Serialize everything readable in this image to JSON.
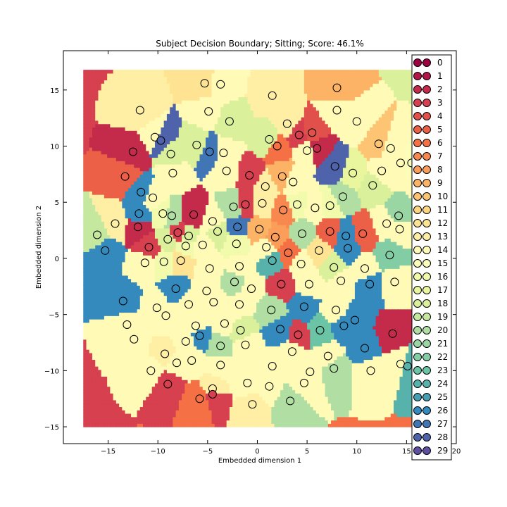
{
  "chart_data": {
    "type": "scatter",
    "title": "Subject Decision Boundary; Sitting; Score: 46.1%",
    "xlabel": "Embedded dimension 1",
    "ylabel": "Embedded dimension 2",
    "xlim": [
      -19.5,
      20
    ],
    "ylim": [
      -16.5,
      18.5
    ],
    "xticks": [
      -15,
      -10,
      -5,
      0,
      5,
      10,
      15,
      20
    ],
    "xtick_labels": [
      "−15",
      "−10",
      "−5",
      "0",
      "5",
      "10",
      "15",
      "20"
    ],
    "yticks": [
      -15,
      -10,
      -5,
      0,
      5,
      10,
      15
    ],
    "ytick_labels": [
      "−15",
      "−10",
      "−5",
      "0",
      "5",
      "10",
      "15"
    ],
    "grid": false,
    "legend_position": "right (overlapping plot edge)",
    "colormap": "Spectral",
    "legend_entries": [
      "0",
      "1",
      "2",
      "3",
      "4",
      "5",
      "6",
      "7",
      "8",
      "9",
      "10",
      "11",
      "12",
      "13",
      "14",
      "15",
      "16",
      "17",
      "18",
      "19",
      "20",
      "21",
      "22",
      "23",
      "24",
      "25",
      "26",
      "27",
      "28",
      "29"
    ],
    "region_extent": {
      "x": [
        -17.5,
        17.8
      ],
      "y": [
        -15,
        16.8
      ]
    },
    "points": [
      {
        "x": -5.3,
        "y": 15.6,
        "c": 12
      },
      {
        "x": -3.7,
        "y": 15.5,
        "c": 14
      },
      {
        "x": -11.8,
        "y": 13.2,
        "c": 13
      },
      {
        "x": -4.9,
        "y": 13.1,
        "c": 14
      },
      {
        "x": -2.8,
        "y": 12.2,
        "c": 18
      },
      {
        "x": 1.5,
        "y": 14.5,
        "c": 13
      },
      {
        "x": 3.0,
        "y": 12.0,
        "c": 13
      },
      {
        "x": 8.0,
        "y": 15.2,
        "c": 9
      },
      {
        "x": 8.0,
        "y": 13.2,
        "c": 14
      },
      {
        "x": 10.0,
        "y": 12.2,
        "c": 14
      },
      {
        "x": -12.5,
        "y": 9.5,
        "c": 2
      },
      {
        "x": -10.3,
        "y": 10.8,
        "c": 14
      },
      {
        "x": -9.7,
        "y": 10.5,
        "c": 28
      },
      {
        "x": -8.7,
        "y": 9.3,
        "c": 18
      },
      {
        "x": -6.1,
        "y": 10.1,
        "c": 18
      },
      {
        "x": -4.8,
        "y": 9.5,
        "c": 27
      },
      {
        "x": -3.4,
        "y": 9.4,
        "c": 14
      },
      {
        "x": 1.2,
        "y": 10.6,
        "c": 18
      },
      {
        "x": 2.0,
        "y": 10.0,
        "c": 6
      },
      {
        "x": 4.2,
        "y": 11.0,
        "c": 3
      },
      {
        "x": 5.5,
        "y": 11.2,
        "c": 4
      },
      {
        "x": 5.0,
        "y": 9.6,
        "c": 14
      },
      {
        "x": 6.0,
        "y": 9.8,
        "c": 2
      },
      {
        "x": 12.2,
        "y": 10.2,
        "c": 10
      },
      {
        "x": 13.4,
        "y": 9.8,
        "c": 14
      },
      {
        "x": 14.4,
        "y": 8.5,
        "c": 14
      },
      {
        "x": 15.5,
        "y": 8.5,
        "c": 15
      },
      {
        "x": 16.5,
        "y": 7.2,
        "c": 14
      },
      {
        "x": -13.3,
        "y": 7.3,
        "c": 5
      },
      {
        "x": -11.7,
        "y": 5.9,
        "c": 26
      },
      {
        "x": -8.5,
        "y": 7.6,
        "c": 14
      },
      {
        "x": -3.1,
        "y": 7.8,
        "c": 14
      },
      {
        "x": -0.8,
        "y": 7.4,
        "c": 3
      },
      {
        "x": 0.8,
        "y": 6.4,
        "c": 13
      },
      {
        "x": 2.5,
        "y": 7.3,
        "c": 9
      },
      {
        "x": 3.6,
        "y": 6.8,
        "c": 14
      },
      {
        "x": 7.8,
        "y": 8.2,
        "c": 28
      },
      {
        "x": 9.6,
        "y": 7.6,
        "c": 17
      },
      {
        "x": 11.6,
        "y": 6.5,
        "c": 18
      },
      {
        "x": 12.5,
        "y": 7.8,
        "c": 14
      },
      {
        "x": -14.3,
        "y": 3.1,
        "c": 13
      },
      {
        "x": -11.9,
        "y": 4.0,
        "c": 26
      },
      {
        "x": -10.5,
        "y": 5.4,
        "c": 14
      },
      {
        "x": -9.5,
        "y": 4.0,
        "c": 16
      },
      {
        "x": -8.6,
        "y": 3.8,
        "c": 20
      },
      {
        "x": -6.4,
        "y": 3.9,
        "c": 2
      },
      {
        "x": -4.5,
        "y": 3.3,
        "c": 14
      },
      {
        "x": -2.4,
        "y": 4.6,
        "c": 20
      },
      {
        "x": -1.2,
        "y": 4.8,
        "c": 3
      },
      {
        "x": 0.5,
        "y": 4.9,
        "c": 13
      },
      {
        "x": 2.6,
        "y": 4.3,
        "c": 7
      },
      {
        "x": 4.0,
        "y": 4.8,
        "c": 16
      },
      {
        "x": 5.8,
        "y": 4.5,
        "c": 14
      },
      {
        "x": 7.3,
        "y": 4.7,
        "c": 16
      },
      {
        "x": 8.6,
        "y": 5.5,
        "c": 20
      },
      {
        "x": 13.0,
        "y": 3.1,
        "c": 14
      },
      {
        "x": 14.2,
        "y": 3.8,
        "c": 21
      },
      {
        "x": -16.1,
        "y": 2.1,
        "c": 19
      },
      {
        "x": -12.0,
        "y": 2.8,
        "c": 2
      },
      {
        "x": -8.0,
        "y": 2.3,
        "c": 3
      },
      {
        "x": -6.9,
        "y": 2.0,
        "c": 18
      },
      {
        "x": -4.0,
        "y": 2.4,
        "c": 18
      },
      {
        "x": -2.0,
        "y": 2.8,
        "c": 27
      },
      {
        "x": 0.2,
        "y": 2.6,
        "c": 9
      },
      {
        "x": 1.8,
        "y": 1.9,
        "c": 8
      },
      {
        "x": 4.5,
        "y": 2.2,
        "c": 20
      },
      {
        "x": 7.3,
        "y": 2.4,
        "c": 5
      },
      {
        "x": 8.9,
        "y": 2.0,
        "c": 26
      },
      {
        "x": 10.6,
        "y": 2.2,
        "c": 5
      },
      {
        "x": 14.3,
        "y": 2.6,
        "c": 14
      },
      {
        "x": -15.3,
        "y": 0.7,
        "c": 26
      },
      {
        "x": -10.9,
        "y": 1.0,
        "c": 3
      },
      {
        "x": -9.0,
        "y": 1.7,
        "c": 18
      },
      {
        "x": -7.2,
        "y": 1.1,
        "c": 16
      },
      {
        "x": -5.5,
        "y": 1.2,
        "c": 14
      },
      {
        "x": -2.1,
        "y": 1.3,
        "c": 16
      },
      {
        "x": 0.9,
        "y": 1.0,
        "c": 14
      },
      {
        "x": 3.1,
        "y": 0.5,
        "c": 6
      },
      {
        "x": 6.2,
        "y": 0.7,
        "c": 12
      },
      {
        "x": 9.1,
        "y": 0.9,
        "c": 26
      },
      {
        "x": 13.3,
        "y": 0.3,
        "c": 22
      },
      {
        "x": -11.3,
        "y": -0.4,
        "c": 14
      },
      {
        "x": -9.4,
        "y": -0.3,
        "c": 16
      },
      {
        "x": -7.7,
        "y": -0.2,
        "c": 12
      },
      {
        "x": -4.8,
        "y": -0.9,
        "c": 14
      },
      {
        "x": -1.8,
        "y": -0.7,
        "c": 14
      },
      {
        "x": 1.5,
        "y": -0.2,
        "c": 24
      },
      {
        "x": 4.4,
        "y": -0.5,
        "c": 14
      },
      {
        "x": 7.7,
        "y": -0.8,
        "c": 18
      },
      {
        "x": 10.8,
        "y": -0.9,
        "c": 14
      },
      {
        "x": -8.2,
        "y": -2.7,
        "c": 26
      },
      {
        "x": -5.1,
        "y": -2.9,
        "c": 14
      },
      {
        "x": -2.3,
        "y": -2.1,
        "c": 20
      },
      {
        "x": -0.6,
        "y": -2.7,
        "c": 14
      },
      {
        "x": 2.4,
        "y": -2.3,
        "c": 3
      },
      {
        "x": 5.2,
        "y": -2.3,
        "c": 14
      },
      {
        "x": 8.4,
        "y": -2.0,
        "c": 14
      },
      {
        "x": 11.3,
        "y": -2.3,
        "c": 26
      },
      {
        "x": 13.8,
        "y": -2.1,
        "c": 14
      },
      {
        "x": -13.5,
        "y": -3.8,
        "c": 26
      },
      {
        "x": -10.1,
        "y": -4.4,
        "c": 14
      },
      {
        "x": -6.9,
        "y": -4.1,
        "c": 14
      },
      {
        "x": -4.4,
        "y": -3.9,
        "c": 14
      },
      {
        "x": -1.8,
        "y": -4.1,
        "c": 14
      },
      {
        "x": 1.4,
        "y": -4.6,
        "c": 20
      },
      {
        "x": 4.7,
        "y": -4.3,
        "c": 26
      },
      {
        "x": 7.9,
        "y": -4.6,
        "c": 14
      },
      {
        "x": 9.8,
        "y": -5.5,
        "c": 26
      },
      {
        "x": -13.1,
        "y": -5.9,
        "c": 14
      },
      {
        "x": -9.2,
        "y": -5.1,
        "c": 14
      },
      {
        "x": -6.2,
        "y": -6.0,
        "c": 14
      },
      {
        "x": -5.8,
        "y": -6.9,
        "c": 26
      },
      {
        "x": -3.3,
        "y": -5.8,
        "c": 14
      },
      {
        "x": -1.7,
        "y": -6.4,
        "c": 18
      },
      {
        "x": 2.3,
        "y": -6.3,
        "c": 26
      },
      {
        "x": 4.1,
        "y": -6.8,
        "c": 3
      },
      {
        "x": 6.3,
        "y": -6.4,
        "c": 23
      },
      {
        "x": 8.7,
        "y": -6.0,
        "c": 26
      },
      {
        "x": 13.6,
        "y": -6.7,
        "c": 2
      },
      {
        "x": -12.4,
        "y": -7.2,
        "c": 14
      },
      {
        "x": -9.3,
        "y": -8.5,
        "c": 13
      },
      {
        "x": -7.2,
        "y": -7.4,
        "c": 14
      },
      {
        "x": -3.7,
        "y": -7.8,
        "c": 20
      },
      {
        "x": -1.2,
        "y": -7.7,
        "c": 14
      },
      {
        "x": 3.5,
        "y": -8.3,
        "c": 14
      },
      {
        "x": 7.1,
        "y": -8.7,
        "c": 14
      },
      {
        "x": 10.8,
        "y": -8.0,
        "c": 26
      },
      {
        "x": -10.7,
        "y": -10.0,
        "c": 14
      },
      {
        "x": -8.1,
        "y": -9.3,
        "c": 14
      },
      {
        "x": -6.6,
        "y": -9.1,
        "c": 14
      },
      {
        "x": -3.7,
        "y": -9.5,
        "c": 14
      },
      {
        "x": 1.5,
        "y": -9.6,
        "c": 14
      },
      {
        "x": 5.3,
        "y": -10.1,
        "c": 14
      },
      {
        "x": 7.7,
        "y": -9.8,
        "c": 20
      },
      {
        "x": 11.4,
        "y": -10.0,
        "c": 14
      },
      {
        "x": 14.4,
        "y": -9.4,
        "c": 14
      },
      {
        "x": -9.0,
        "y": -11.2,
        "c": 3
      },
      {
        "x": -4.5,
        "y": -11.6,
        "c": 13
      },
      {
        "x": -1.0,
        "y": -11.1,
        "c": 14
      },
      {
        "x": 1.2,
        "y": -11.4,
        "c": 14
      },
      {
        "x": 4.7,
        "y": -11.1,
        "c": 14
      },
      {
        "x": -5.8,
        "y": -12.5,
        "c": 6
      },
      {
        "x": -4.5,
        "y": -12.1,
        "c": 3
      },
      {
        "x": 3.3,
        "y": -12.7,
        "c": 20
      },
      {
        "x": -0.5,
        "y": -13.0,
        "c": 13
      },
      {
        "x": 15.1,
        "y": -9.6,
        "c": 24
      }
    ]
  }
}
